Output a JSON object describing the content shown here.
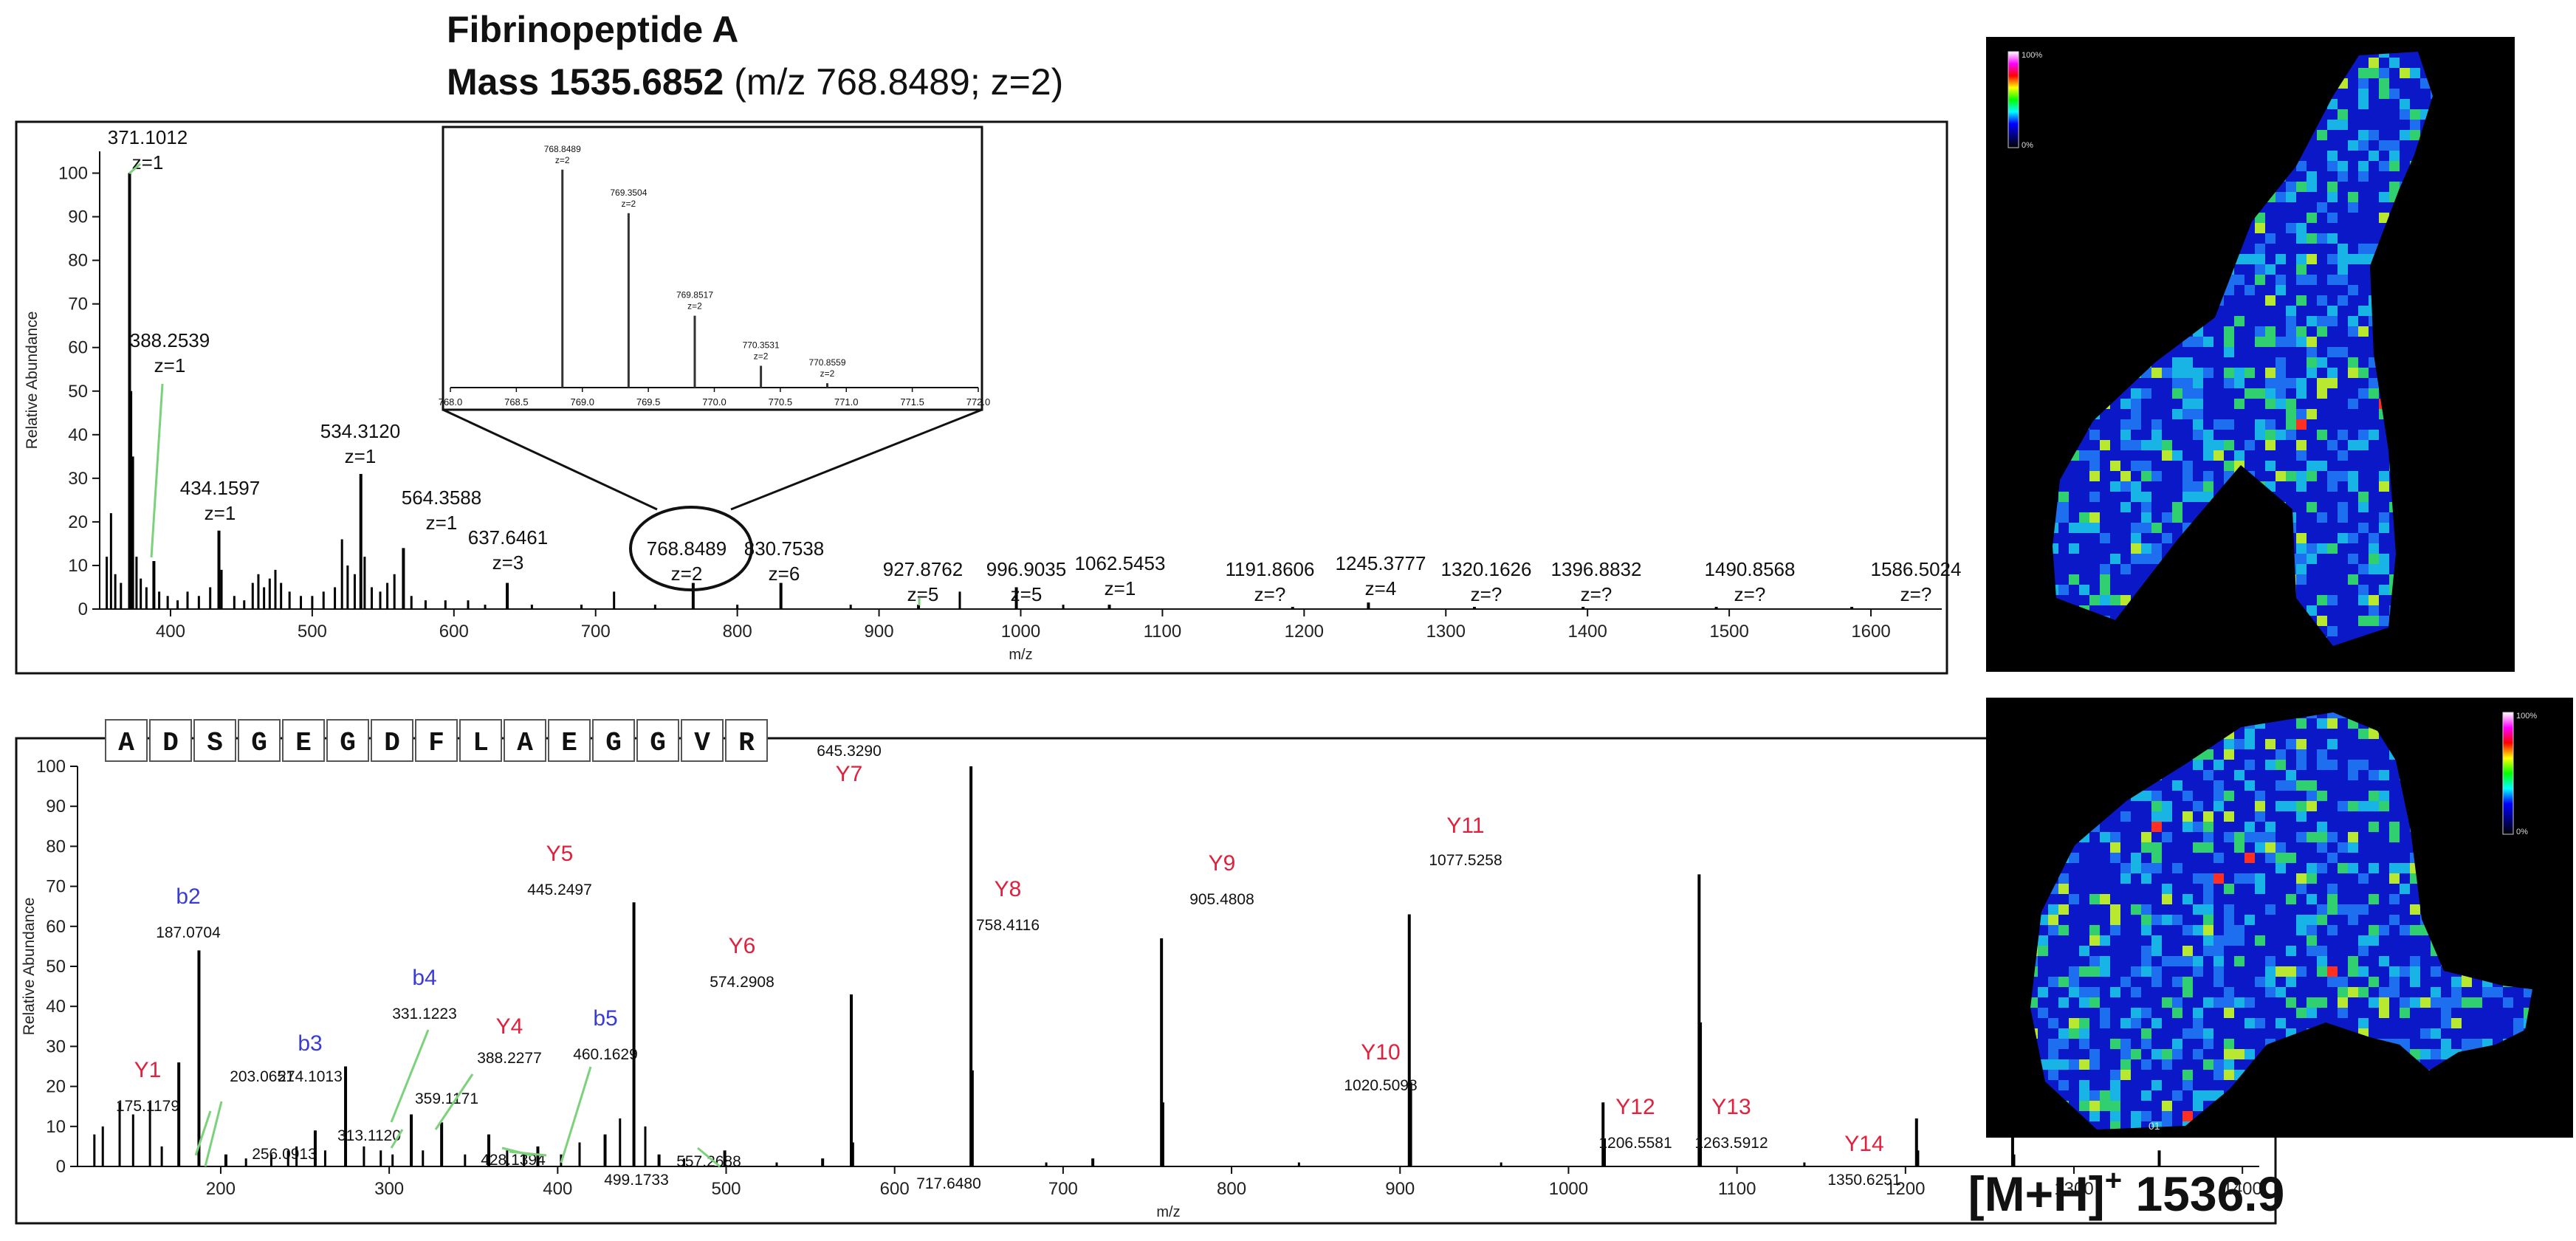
{
  "header": {
    "title": "Fibrinopeptide A",
    "mass_bold": "Mass 1535.6852",
    "mass_rest": " (m/z 768.8489; z=2)"
  },
  "imaging": {
    "label_main": "[M+H]",
    "label_sup": "+",
    "label_value": " 1536.9",
    "scale_top": "100%",
    "scale_bottom": "0%",
    "panel2_id": "01",
    "colormap": [
      "#ffffff",
      "#ff00ff",
      "#ff0000",
      "#ffff00",
      "#00ff00",
      "#00ffff",
      "#0000ff",
      "#000080",
      "#000000"
    ]
  },
  "chart_data": [
    {
      "type": "bar",
      "title": "",
      "xlabel": "m/z",
      "ylabel": "Relative Abundance",
      "xlim": [
        350,
        1650
      ],
      "ylim": [
        0,
        105
      ],
      "xticks": [
        400,
        500,
        600,
        700,
        800,
        900,
        1000,
        1100,
        1200,
        1300,
        1400,
        1500,
        1600
      ],
      "yticks": [
        0,
        10,
        20,
        30,
        40,
        50,
        60,
        70,
        80,
        90,
        100
      ],
      "peaks": [
        {
          "mz": 355,
          "y": 12
        },
        {
          "mz": 358,
          "y": 22
        },
        {
          "mz": 361,
          "y": 8
        },
        {
          "mz": 365,
          "y": 6
        },
        {
          "mz": 371.1012,
          "y": 100,
          "label": "371.1012",
          "z": "z=1"
        },
        {
          "mz": 372.2,
          "y": 50
        },
        {
          "mz": 373.5,
          "y": 35
        },
        {
          "mz": 376,
          "y": 12
        },
        {
          "mz": 379,
          "y": 7
        },
        {
          "mz": 383,
          "y": 5
        },
        {
          "mz": 388.2539,
          "y": 11,
          "label": "388.2539",
          "z": "z=1"
        },
        {
          "mz": 392,
          "y": 4
        },
        {
          "mz": 398,
          "y": 3
        },
        {
          "mz": 405,
          "y": 2
        },
        {
          "mz": 412,
          "y": 4
        },
        {
          "mz": 420,
          "y": 3
        },
        {
          "mz": 428,
          "y": 5
        },
        {
          "mz": 434.1597,
          "y": 18,
          "label": "434.1597",
          "z": "z=1"
        },
        {
          "mz": 436,
          "y": 9
        },
        {
          "mz": 445,
          "y": 3
        },
        {
          "mz": 452,
          "y": 2
        },
        {
          "mz": 458,
          "y": 6
        },
        {
          "mz": 462,
          "y": 8
        },
        {
          "mz": 466,
          "y": 5
        },
        {
          "mz": 470,
          "y": 7
        },
        {
          "mz": 474,
          "y": 9
        },
        {
          "mz": 478,
          "y": 6
        },
        {
          "mz": 484,
          "y": 4
        },
        {
          "mz": 492,
          "y": 3
        },
        {
          "mz": 500,
          "y": 3
        },
        {
          "mz": 508,
          "y": 4
        },
        {
          "mz": 516,
          "y": 5
        },
        {
          "mz": 521,
          "y": 16
        },
        {
          "mz": 525,
          "y": 10
        },
        {
          "mz": 530,
          "y": 8
        },
        {
          "mz": 534.312,
          "y": 31,
          "label": "534.3120",
          "z": "z=1"
        },
        {
          "mz": 537,
          "y": 12
        },
        {
          "mz": 542,
          "y": 5
        },
        {
          "mz": 548,
          "y": 4
        },
        {
          "mz": 553,
          "y": 6
        },
        {
          "mz": 558,
          "y": 8
        },
        {
          "mz": 564.3588,
          "y": 14,
          "label": "564.3588",
          "z": "z=1"
        },
        {
          "mz": 570,
          "y": 3
        },
        {
          "mz": 580,
          "y": 2
        },
        {
          "mz": 594,
          "y": 2
        },
        {
          "mz": 610,
          "y": 2
        },
        {
          "mz": 622,
          "y": 1
        },
        {
          "mz": 637.6461,
          "y": 6,
          "label": "637.6461",
          "z": "z=3"
        },
        {
          "mz": 655,
          "y": 1
        },
        {
          "mz": 690,
          "y": 1
        },
        {
          "mz": 713,
          "y": 4
        },
        {
          "mz": 742,
          "y": 1
        },
        {
          "mz": 768.8489,
          "y": 6,
          "label": "768.8489",
          "z": "z=2"
        },
        {
          "mz": 800,
          "y": 1
        },
        {
          "mz": 830.7538,
          "y": 6,
          "label": "830.7538",
          "z": "z=6"
        },
        {
          "mz": 880,
          "y": 1
        },
        {
          "mz": 927.8762,
          "y": 1,
          "label": "927.8762",
          "z": "z=5"
        },
        {
          "mz": 957,
          "y": 4
        },
        {
          "mz": 996.9035,
          "y": 5,
          "label": "996.9035",
          "z": "z=5"
        },
        {
          "mz": 1030,
          "y": 1
        },
        {
          "mz": 1062.5453,
          "y": 1,
          "label": "1062.5453",
          "z": "z=1"
        },
        {
          "mz": 1191.8606,
          "y": 0.5,
          "label": "1191.8606",
          "z": "z=?"
        },
        {
          "mz": 1245.3777,
          "y": 1.5,
          "label": "1245.3777",
          "z": "z=4"
        },
        {
          "mz": 1320.1626,
          "y": 0.5,
          "label": "1320.1626",
          "z": "z=?"
        },
        {
          "mz": 1396.8832,
          "y": 0.5,
          "label": "1396.8832",
          "z": "z=?"
        },
        {
          "mz": 1490.8568,
          "y": 0.5,
          "label": "1490.8568",
          "z": "z=?"
        },
        {
          "mz": 1586.5024,
          "y": 0.5,
          "label": "1586.5024",
          "z": "z=?"
        }
      ],
      "inset": {
        "xlim": [
          768.0,
          772.0
        ],
        "xticks": [
          768.0,
          768.5,
          769.0,
          769.5,
          770.0,
          770.5,
          771.0,
          771.5,
          772.0
        ],
        "tick_labels": [
          "768.0",
          "768.5",
          "769.0",
          "769.5",
          "770.0",
          "770.5",
          "771.0",
          "771.5",
          "772.0"
        ],
        "peaks": [
          {
            "mz": 768.8489,
            "y": 100,
            "label": "768.8489",
            "z": "z=2"
          },
          {
            "mz": 769.3504,
            "y": 80,
            "label": "769.3504",
            "z": "z=2"
          },
          {
            "mz": 769.8517,
            "y": 33,
            "label": "769.8517",
            "z": "z=2"
          },
          {
            "mz": 770.3531,
            "y": 10,
            "label": "770.3531",
            "z": "z=2"
          },
          {
            "mz": 770.8559,
            "y": 2,
            "label": "770.8559",
            "z": "z=2"
          }
        ]
      }
    },
    {
      "type": "bar",
      "title": "",
      "xlabel": "m/z",
      "ylabel": "Relative Abundance",
      "xlim": [
        115,
        1410
      ],
      "ylim": [
        0,
        100
      ],
      "xticks": [
        200,
        300,
        400,
        500,
        600,
        700,
        800,
        900,
        1000,
        1100,
        1200,
        1300,
        1400
      ],
      "yticks": [
        0,
        10,
        20,
        30,
        40,
        50,
        60,
        70,
        80,
        90,
        100
      ],
      "sequence": [
        "A",
        "D",
        "S",
        "G",
        "E",
        "G",
        "D",
        "F",
        "L",
        "A",
        "E",
        "G",
        "G",
        "V",
        "R"
      ],
      "peaks": [
        {
          "mz": 125,
          "y": 8
        },
        {
          "mz": 130,
          "y": 10
        },
        {
          "mz": 140,
          "y": 16
        },
        {
          "mz": 148,
          "y": 13
        },
        {
          "mz": 158,
          "y": 16
        },
        {
          "mz": 165,
          "y": 5
        },
        {
          "mz": 175.1179,
          "y": 26,
          "label": "175.1179",
          "ion": "Y1"
        },
        {
          "mz": 187.0704,
          "y": 54,
          "label": "187.0704",
          "ion": "b2"
        },
        {
          "mz": 203.0651,
          "y": 3,
          "label": "203.0651"
        },
        {
          "mz": 215,
          "y": 2
        },
        {
          "mz": 230,
          "y": 3
        },
        {
          "mz": 240,
          "y": 4
        },
        {
          "mz": 245,
          "y": 5
        },
        {
          "mz": 256.0913,
          "y": 9,
          "label": "256.0913"
        },
        {
          "mz": 262,
          "y": 4
        },
        {
          "mz": 274.1013,
          "y": 25,
          "label": "274.1013",
          "ion": "b3"
        },
        {
          "mz": 285,
          "y": 5
        },
        {
          "mz": 295,
          "y": 4
        },
        {
          "mz": 302,
          "y": 3
        },
        {
          "mz": 313.112,
          "y": 13,
          "label": "313.1120"
        },
        {
          "mz": 320,
          "y": 4
        },
        {
          "mz": 331.1223,
          "y": 11,
          "label": "331.1223",
          "ion": "b4"
        },
        {
          "mz": 345,
          "y": 3
        },
        {
          "mz": 359.1171,
          "y": 8,
          "label": "359.1171"
        },
        {
          "mz": 370,
          "y": 4
        },
        {
          "mz": 380,
          "y": 3
        },
        {
          "mz": 388.2277,
          "y": 5,
          "label": "388.2277",
          "ion": "Y4"
        },
        {
          "mz": 402,
          "y": 3
        },
        {
          "mz": 413,
          "y": 6
        },
        {
          "mz": 428.1394,
          "y": 8,
          "label": "428.1394"
        },
        {
          "mz": 437,
          "y": 12
        },
        {
          "mz": 445.2497,
          "y": 66,
          "label": "445.2497",
          "ion": "Y5"
        },
        {
          "mz": 452,
          "y": 10
        },
        {
          "mz": 460.1629,
          "y": 3,
          "label": "460.1629",
          "ion": "b5"
        },
        {
          "mz": 475,
          "y": 2
        },
        {
          "mz": 499.1733,
          "y": 4,
          "label": "499.1733"
        },
        {
          "mz": 530,
          "y": 1
        },
        {
          "mz": 557.2688,
          "y": 2,
          "label": "557.2688"
        },
        {
          "mz": 574.2908,
          "y": 43,
          "label": "574.2908",
          "ion": "Y6"
        },
        {
          "mz": 575.3,
          "y": 6
        },
        {
          "mz": 645.329,
          "y": 100,
          "label": "645.3290",
          "ion": "Y7"
        },
        {
          "mz": 646.3,
          "y": 24
        },
        {
          "mz": 690,
          "y": 1
        },
        {
          "mz": 717.648,
          "y": 2,
          "label": "717.6480"
        },
        {
          "mz": 758.4116,
          "y": 57,
          "label": "758.4116",
          "ion": "Y8"
        },
        {
          "mz": 759.4,
          "y": 16
        },
        {
          "mz": 840,
          "y": 1
        },
        {
          "mz": 905.4808,
          "y": 63,
          "label": "905.4808",
          "ion": "Y9"
        },
        {
          "mz": 906.5,
          "y": 21
        },
        {
          "mz": 960,
          "y": 1
        },
        {
          "mz": 1020.5098,
          "y": 16,
          "label": "1020.5098",
          "ion": "Y10"
        },
        {
          "mz": 1021.5,
          "y": 7
        },
        {
          "mz": 1077.5258,
          "y": 73,
          "label": "1077.5258",
          "ion": "Y11"
        },
        {
          "mz": 1078.5,
          "y": 36
        },
        {
          "mz": 1140,
          "y": 1
        },
        {
          "mz": 1206.5581,
          "y": 12,
          "label": "1206.5581",
          "ion": "Y12"
        },
        {
          "mz": 1207.5,
          "y": 4
        },
        {
          "mz": 1263.5912,
          "y": 12,
          "label": "1263.5912",
          "ion": "Y13"
        },
        {
          "mz": 1264.5,
          "y": 3
        },
        {
          "mz": 1350.6251,
          "y": 4,
          "label": "1350.6251",
          "ion": "Y14"
        }
      ]
    }
  ]
}
